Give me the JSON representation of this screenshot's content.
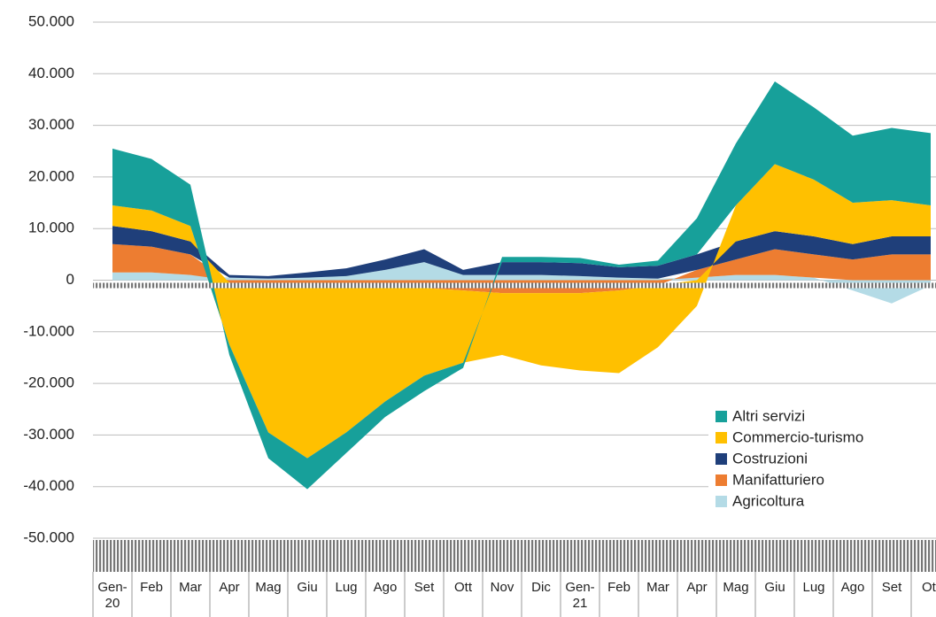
{
  "chart_data": {
    "type": "area",
    "categories": [
      "Gen-20",
      "Feb",
      "Mar",
      "Apr",
      "Mag",
      "Giu",
      "Lug",
      "Ago",
      "Set",
      "Ott",
      "Nov",
      "Dic",
      "Gen-21",
      "Feb",
      "Mar",
      "Apr",
      "Mag",
      "Giu",
      "Lug",
      "Ago",
      "Set",
      "Ott"
    ],
    "series": [
      {
        "name": "Altri servizi",
        "color": "#17a09a",
        "values": [
          11000,
          10000,
          8000,
          -2000,
          -5000,
          -6000,
          -4000,
          -3000,
          -3000,
          -1000,
          1000,
          1000,
          1000,
          500,
          1000,
          7000,
          12000,
          16000,
          14000,
          13000,
          14000,
          14000
        ]
      },
      {
        "name": "Commercio-turismo",
        "color": "#ffc000",
        "values": [
          4000,
          4000,
          3000,
          -12000,
          -28000,
          -33000,
          -28000,
          -22000,
          -17000,
          -14000,
          -12000,
          -14000,
          -15000,
          -16000,
          -12000,
          -5000,
          7000,
          13000,
          11000,
          8000,
          7000,
          6000
        ]
      },
      {
        "name": "Costruzioni",
        "color": "#1f3f7a",
        "values": [
          3500,
          3000,
          2500,
          500,
          500,
          1000,
          1500,
          2000,
          2500,
          1000,
          2500,
          2500,
          2500,
          2000,
          2500,
          3000,
          3500,
          3500,
          3500,
          3000,
          3500,
          3500
        ]
      },
      {
        "name": "Manifatturiero",
        "color": "#ed7d31",
        "values": [
          5500,
          5000,
          4000,
          -500,
          -1500,
          -1500,
          -1500,
          -1500,
          -1500,
          -2000,
          -2500,
          -2500,
          -2500,
          -2000,
          -1000,
          1500,
          3000,
          5000,
          4500,
          4000,
          5000,
          5000
        ]
      },
      {
        "name": "Agricoltura",
        "color": "#b4dbe6",
        "values": [
          1500,
          1500,
          1000,
          500,
          300,
          500,
          800,
          2000,
          3500,
          1000,
          1000,
          1000,
          800,
          500,
          300,
          500,
          1000,
          1000,
          500,
          -2000,
          -4500,
          -1000
        ]
      }
    ],
    "ylim": [
      -50000,
      50000
    ],
    "yticks": [
      {
        "value": -50000,
        "label": "-50.000"
      },
      {
        "value": -40000,
        "label": "-40.000"
      },
      {
        "value": -30000,
        "label": "-30.000"
      },
      {
        "value": -20000,
        "label": "-20.000"
      },
      {
        "value": -10000,
        "label": "-10.000"
      },
      0,
      {
        "value": 10000,
        "label": "10.000"
      },
      {
        "value": 20000,
        "label": "20.000"
      },
      {
        "value": 30000,
        "label": "30.000"
      },
      {
        "value": 40000,
        "label": "40.000"
      },
      {
        "value": 50000,
        "label": "50.000"
      }
    ],
    "grid": true,
    "legend": "lower right"
  }
}
